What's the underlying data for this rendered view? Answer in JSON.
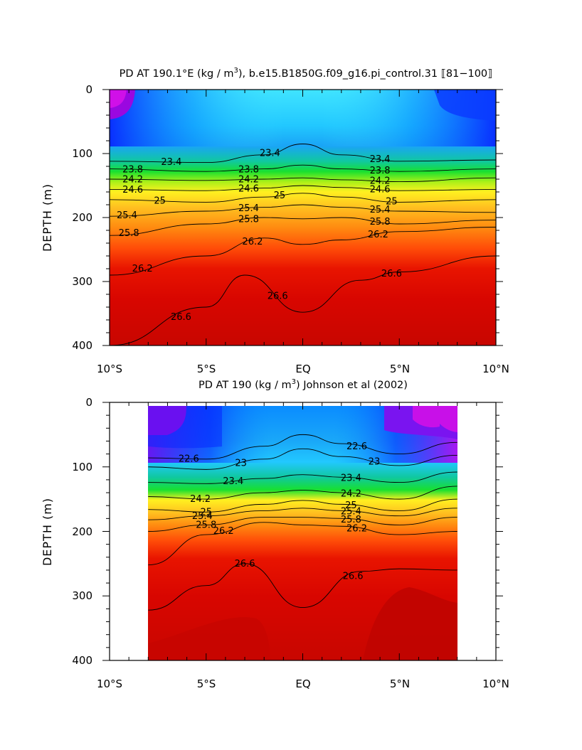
{
  "panels": [
    {
      "title_pre": "PD AT 190.1°E (kg / m",
      "title_sup": "3",
      "title_post": "), b.e15.B1850G.f09_g16.pi_control.31 ⟦81−100⟧",
      "ylabel": "DEPTH (m)",
      "xticks": [
        "10°S",
        "5°S",
        "EQ",
        "5°N",
        "10°N"
      ],
      "yticks": [
        "0",
        "100",
        "200",
        "300",
        "400"
      ]
    },
    {
      "title_pre": "PD AT 190 (kg / m",
      "title_sup": "3",
      "title_post": ") Johnson et al (2002)",
      "ylabel": "DEPTH (m)",
      "xticks": [
        "10°S",
        "5°S",
        "EQ",
        "5°N",
        "10°N"
      ],
      "yticks": [
        "0",
        "100",
        "200",
        "300",
        "400"
      ]
    }
  ],
  "chart_data": [
    {
      "type": "heatmap",
      "title": "PD AT 190.1°E (kg / m3), b.e15.B1850G.f09_g16.pi_control.31 ⟦81−100⟧",
      "ylabel": "DEPTH (m)",
      "x_range": [
        -10,
        10
      ],
      "ylim": [
        0,
        400
      ],
      "contour_levels": [
        21.4,
        21.6,
        21.8,
        22.0,
        22.2,
        22.4,
        22.6,
        22.8,
        23.0,
        23.2,
        23.4,
        23.6,
        23.8,
        24.0,
        24.2,
        24.4,
        24.6,
        24.8,
        25.0,
        25.2,
        25.4,
        25.6,
        25.8,
        26.0,
        26.2,
        26.4,
        26.6
      ],
      "contours": [
        {
          "level": 23.4,
          "points": [
            [
              -10,
              112
            ],
            [
              -5,
              114
            ],
            [
              -2,
              102
            ],
            [
              0,
              85
            ],
            [
              2,
              102
            ],
            [
              5,
              112
            ],
            [
              10,
              110
            ]
          ],
          "labels": [
            {
              "x": -6.8,
              "text": "23.4"
            },
            {
              "x": -1.7,
              "text": "23.4"
            },
            {
              "x": 4.0,
              "text": "23.4"
            }
          ]
        },
        {
          "level": 23.8,
          "points": [
            [
              -10,
              124
            ],
            [
              -5,
              128
            ],
            [
              -2,
              124
            ],
            [
              0,
              118
            ],
            [
              2,
              124
            ],
            [
              5,
              128
            ],
            [
              10,
              124
            ]
          ],
          "labels": [
            {
              "x": -8.8,
              "text": "23.8"
            },
            {
              "x": -2.8,
              "text": "23.8"
            },
            {
              "x": 4.0,
              "text": "23.8"
            }
          ]
        },
        {
          "level": 24.2,
          "points": [
            [
              -10,
              140
            ],
            [
              -5,
              142
            ],
            [
              -2,
              140
            ],
            [
              0,
              138
            ],
            [
              2,
              141
            ],
            [
              5,
              144
            ],
            [
              10,
              138
            ]
          ],
          "labels": [
            {
              "x": -8.8,
              "text": "24.2"
            },
            {
              "x": -2.8,
              "text": "24.2"
            },
            {
              "x": 4.0,
              "text": "24.2"
            }
          ]
        },
        {
          "level": 24.6,
          "points": [
            [
              -10,
              156
            ],
            [
              -5,
              158
            ],
            [
              -2,
              154
            ],
            [
              0,
              150
            ],
            [
              2,
              153
            ],
            [
              5,
              158
            ],
            [
              10,
              156
            ]
          ],
          "labels": [
            {
              "x": -8.8,
              "text": "24.6"
            },
            {
              "x": -2.8,
              "text": "24.6"
            },
            {
              "x": 4.0,
              "text": "24.6"
            }
          ]
        },
        {
          "level": 25.0,
          "points": [
            [
              -10,
              172
            ],
            [
              -5,
              176
            ],
            [
              -2,
              168
            ],
            [
              0,
              162
            ],
            [
              2,
              168
            ],
            [
              5,
              176
            ],
            [
              10,
              172
            ]
          ],
          "labels": [
            {
              "x": -7.4,
              "text": "25"
            },
            {
              "x": -1.2,
              "text": "25"
            },
            {
              "x": 4.6,
              "text": "25"
            }
          ]
        },
        {
          "level": 25.4,
          "points": [
            [
              -10,
              198
            ],
            [
              -5,
              190
            ],
            [
              -2,
              184
            ],
            [
              0,
              180
            ],
            [
              2,
              184
            ],
            [
              5,
              190
            ],
            [
              10,
              192
            ]
          ],
          "labels": [
            {
              "x": -9.1,
              "text": "25.4"
            },
            {
              "x": -2.8,
              "text": "25.4"
            },
            {
              "x": 4.0,
              "text": "25.4"
            }
          ]
        },
        {
          "level": 25.8,
          "points": [
            [
              -10,
              228
            ],
            [
              -5,
              210
            ],
            [
              -2,
              200
            ],
            [
              0,
              202
            ],
            [
              2,
              200
            ],
            [
              5,
              210
            ],
            [
              10,
              204
            ]
          ],
          "labels": [
            {
              "x": -9.0,
              "text": "25.8"
            },
            {
              "x": -2.8,
              "text": "25.8"
            },
            {
              "x": 4.0,
              "text": "25.8"
            }
          ]
        },
        {
          "level": 26.2,
          "points": [
            [
              -10,
              290
            ],
            [
              -5,
              260
            ],
            [
              -2,
              232
            ],
            [
              0,
              242
            ],
            [
              2,
              235
            ],
            [
              5,
              222
            ],
            [
              10,
              215
            ]
          ],
          "labels": [
            {
              "x": -8.3,
              "text": "26.2"
            },
            {
              "x": -2.6,
              "text": "26.2"
            },
            {
              "x": 3.9,
              "text": "26.2"
            }
          ]
        },
        {
          "level": 26.6,
          "points": [
            [
              -10,
              400
            ],
            [
              -5,
              340
            ],
            [
              -3,
              290
            ],
            [
              0,
              348
            ],
            [
              3,
              298
            ],
            [
              5,
              285
            ],
            [
              10,
              260
            ]
          ],
          "labels": [
            {
              "x": -6.3,
              "text": "26.6"
            },
            {
              "x": -1.3,
              "text": "26.6"
            },
            {
              "x": 4.6,
              "text": "26.6"
            }
          ]
        }
      ]
    },
    {
      "type": "heatmap",
      "title": "PD AT 190 (kg / m3) Johnson et al (2002)",
      "ylabel": "DEPTH (m)",
      "x_range": [
        -10,
        10
      ],
      "data_x_range": [
        -8,
        8
      ],
      "ylim": [
        0,
        400
      ],
      "contour_levels": [
        21.4,
        21.6,
        21.8,
        22.0,
        22.2,
        22.4,
        22.6,
        22.8,
        23.0,
        23.2,
        23.4,
        23.6,
        23.8,
        24.0,
        24.2,
        24.4,
        24.6,
        24.8,
        25.0,
        25.2,
        25.4,
        25.6,
        25.8,
        26.0,
        26.2,
        26.4,
        26.6
      ],
      "contours": [
        {
          "level": 22.6,
          "points": [
            [
              -8,
              86
            ],
            [
              -5,
              88
            ],
            [
              -2,
              68
            ],
            [
              0,
              50
            ],
            [
              2,
              64
            ],
            [
              5,
              80
            ],
            [
              8,
              62
            ]
          ],
          "labels": [
            {
              "x": -5.9,
              "text": "22.6"
            },
            {
              "x": 2.8,
              "text": "22.6"
            }
          ]
        },
        {
          "level": 23.0,
          "points": [
            [
              -8,
              100
            ],
            [
              -5,
              104
            ],
            [
              -2,
              88
            ],
            [
              0,
              72
            ],
            [
              2,
              84
            ],
            [
              5,
              98
            ],
            [
              8,
              82
            ]
          ],
          "labels": [
            {
              "x": -3.2,
              "text": "23"
            },
            {
              "x": 3.7,
              "text": "23"
            }
          ]
        },
        {
          "level": 23.4,
          "points": [
            [
              -8,
              124
            ],
            [
              -5,
              126
            ],
            [
              -2,
              118
            ],
            [
              0,
              112
            ],
            [
              2,
              116
            ],
            [
              5,
              124
            ],
            [
              8,
              108
            ]
          ],
          "labels": [
            {
              "x": -3.6,
              "text": "23.4"
            },
            {
              "x": 2.5,
              "text": "23.4"
            }
          ]
        },
        {
          "level": 24.2,
          "points": [
            [
              -8,
              146
            ],
            [
              -5,
              150
            ],
            [
              -2,
              140
            ],
            [
              0,
              136
            ],
            [
              2,
              140
            ],
            [
              5,
              150
            ],
            [
              8,
              130
            ]
          ],
          "labels": [
            {
              "x": -5.3,
              "text": "24.2"
            },
            {
              "x": 2.5,
              "text": "24.2"
            }
          ]
        },
        {
          "level": 25.0,
          "points": [
            [
              -8,
              166
            ],
            [
              -5,
              170
            ],
            [
              -2,
              158
            ],
            [
              0,
              152
            ],
            [
              2,
              158
            ],
            [
              5,
              168
            ],
            [
              8,
              150
            ]
          ],
          "labels": [
            {
              "x": -5.0,
              "text": "25"
            },
            {
              "x": 2.5,
              "text": "25"
            }
          ]
        },
        {
          "level": 25.4,
          "points": [
            [
              -8,
              182
            ],
            [
              -5,
              176
            ],
            [
              -2,
              168
            ],
            [
              0,
              164
            ],
            [
              2,
              168
            ],
            [
              5,
              176
            ],
            [
              8,
              164
            ]
          ],
          "labels": [
            {
              "x": -5.2,
              "text": "25.4"
            },
            {
              "x": 2.5,
              "text": "25.4"
            }
          ]
        },
        {
          "level": 25.8,
          "points": [
            [
              -8,
              200
            ],
            [
              -5,
              190
            ],
            [
              -2,
              178
            ],
            [
              0,
              178
            ],
            [
              2,
              180
            ],
            [
              5,
              190
            ],
            [
              8,
              178
            ]
          ],
          "labels": [
            {
              "x": -5.0,
              "text": "25.8"
            },
            {
              "x": 2.5,
              "text": "25.8"
            }
          ]
        },
        {
          "level": 26.2,
          "points": [
            [
              -8,
              252
            ],
            [
              -5,
              205
            ],
            [
              -2,
              186
            ],
            [
              0,
              190
            ],
            [
              2,
              192
            ],
            [
              5,
              205
            ],
            [
              8,
              200
            ]
          ],
          "labels": [
            {
              "x": -4.1,
              "text": "26.2"
            },
            {
              "x": 2.8,
              "text": "26.2"
            }
          ]
        },
        {
          "level": 26.6,
          "points": [
            [
              -8,
              322
            ],
            [
              -5,
              284
            ],
            [
              -3,
              250
            ],
            [
              0,
              318
            ],
            [
              3,
              262
            ],
            [
              5,
              258
            ],
            [
              8,
              260
            ]
          ],
          "labels": [
            {
              "x": -3.0,
              "text": "26.6"
            },
            {
              "x": 2.6,
              "text": "26.6"
            }
          ]
        }
      ]
    }
  ]
}
